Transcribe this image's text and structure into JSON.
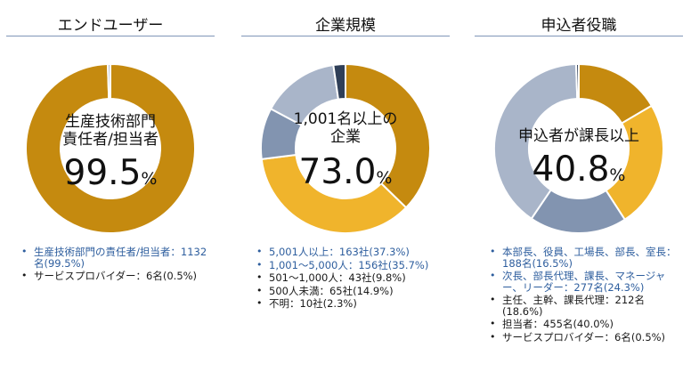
{
  "panels": [
    {
      "title": "エンドユーザー",
      "center_lines": [
        "生産技術部門",
        "責任者/担当者"
      ],
      "center_value": "99.5",
      "center_unit": "%",
      "legend": [
        {
          "text": "生産技術部門の責任者/担当者：1132名(99.5%)",
          "style": "blue"
        },
        {
          "text": "サービスプロバイダー：6名(0.5%)",
          "style": "dark"
        }
      ]
    },
    {
      "title": "企業規模",
      "center_lines": [
        "1,001名以上の",
        "企業"
      ],
      "center_value": "73.0",
      "center_unit": "%",
      "legend": [
        {
          "text": "5,001人以上：163社(37.3%)",
          "style": "blue"
        },
        {
          "text": "1,001～5,000人：156社(35.7%)",
          "style": "blue"
        },
        {
          "text": "501～1,000人：43社(9.8%)",
          "style": "dark"
        },
        {
          "text": "500人未満：65社(14.9%)",
          "style": "dark"
        },
        {
          "text": "不明：10社(2.3%)",
          "style": "dark"
        }
      ]
    },
    {
      "title": "申込者役職",
      "center_lines": [
        "申込者が課長以上"
      ],
      "center_value": "40.8",
      "center_unit": "%",
      "legend": [
        {
          "text": "本部長、役員、工場長、部長、室長：188名(16.5%)",
          "style": "blue"
        },
        {
          "text": "次長、部長代理、課長、マネージャー、リーダー：277名(24.3%)",
          "style": "blue"
        },
        {
          "text": "主任、主幹、課長代理：212名(18.6%)",
          "style": "dark"
        },
        {
          "text": "担当者：455名(40.0%)",
          "style": "dark"
        },
        {
          "text": "サービスプロバイダー：6名(0.5%)",
          "style": "dark"
        }
      ]
    }
  ],
  "chart_data": [
    {
      "type": "pie",
      "title": "エンドユーザー",
      "categories": [
        "生産技術部門の責任者/担当者",
        "サービスプロバイダー"
      ],
      "values": [
        99.5,
        0.5
      ],
      "colors": [
        "#c58a0f",
        "#a9b5c9"
      ]
    },
    {
      "type": "pie",
      "title": "企業規模",
      "categories": [
        "5,001人以上",
        "1,001～5,000人",
        "501～1,000人",
        "500人未満",
        "不明"
      ],
      "values": [
        37.3,
        35.7,
        9.8,
        14.9,
        2.3
      ],
      "colors": [
        "#c58a0f",
        "#f0b42c",
        "#8294b0",
        "#a9b5c9",
        "#2f3f58"
      ]
    },
    {
      "type": "pie",
      "title": "申込者役職",
      "categories": [
        "本部長、役員、工場長、部長、室長",
        "次長、部長代理、課長、マネージャー、リーダー",
        "主任、主幹、課長代理",
        "担当者",
        "サービスプロバイダー"
      ],
      "values": [
        16.5,
        24.3,
        18.6,
        40.0,
        0.5
      ],
      "colors": [
        "#c58a0f",
        "#f0b42c",
        "#8294b0",
        "#a9b5c9",
        "#2f3f58"
      ]
    }
  ]
}
